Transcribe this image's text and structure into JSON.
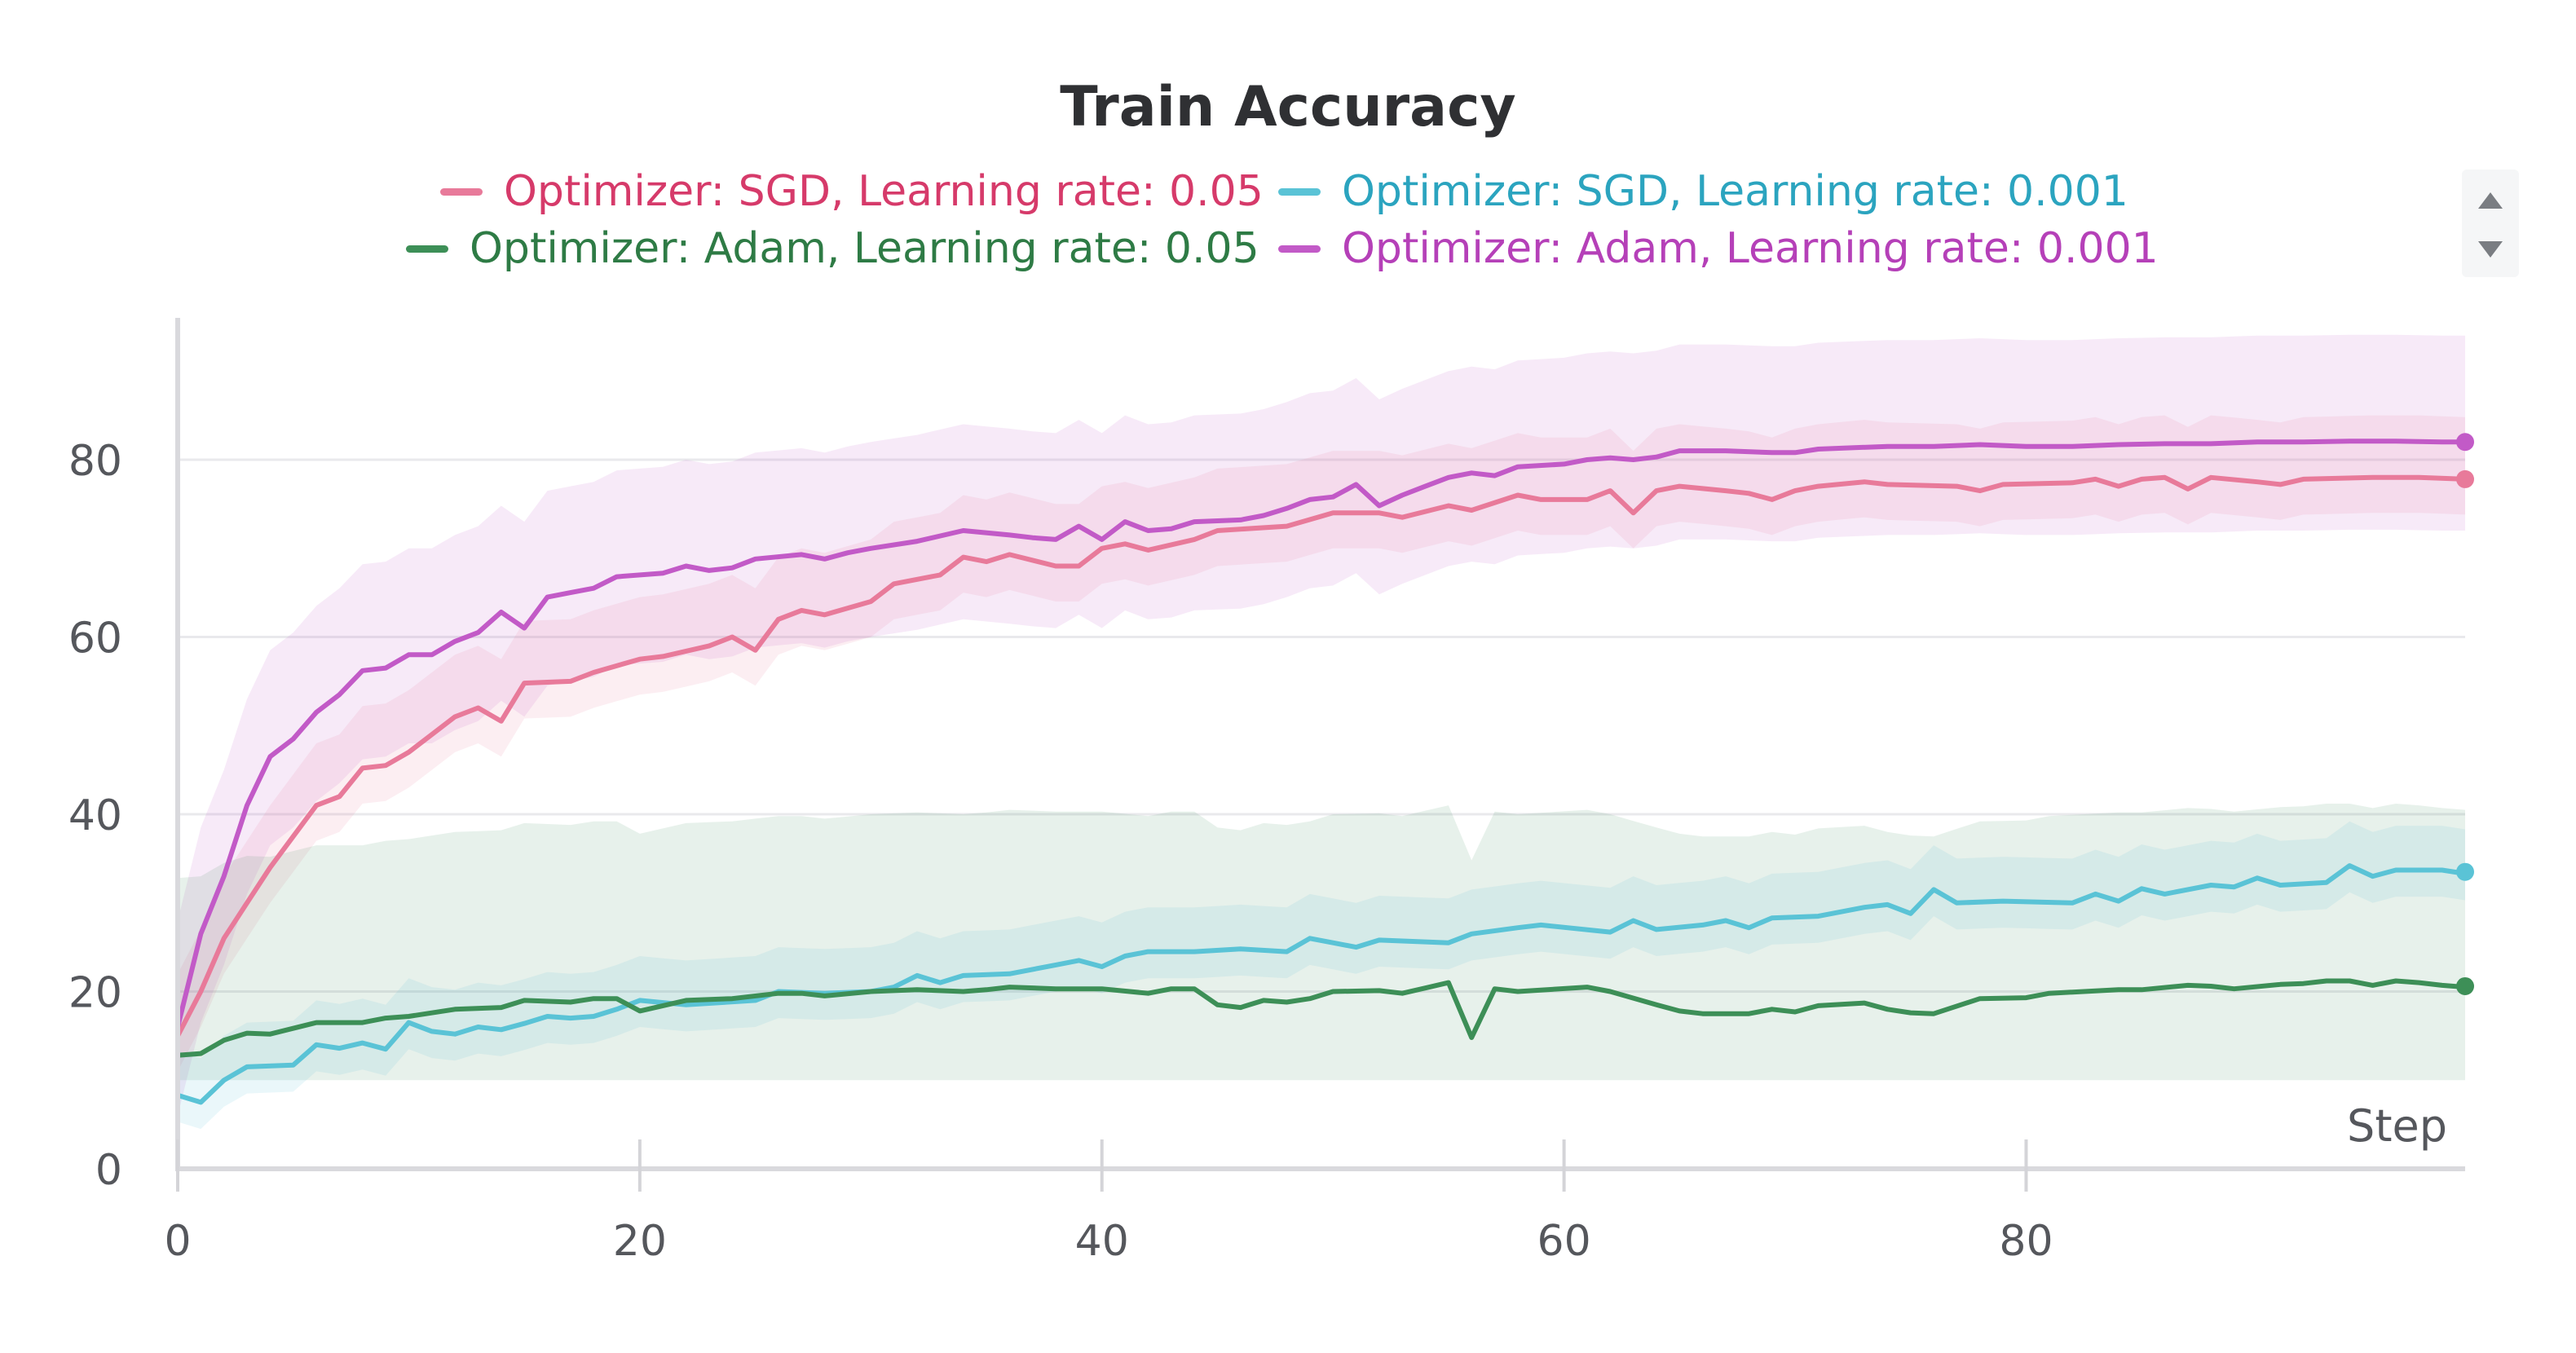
{
  "chart_data": {
    "type": "line",
    "title": "Train Accuracy",
    "xlabel": "Step",
    "ylabel": "",
    "xlim": [
      0,
      99
    ],
    "ylim": [
      0,
      96
    ],
    "xticks": [
      0,
      20,
      40,
      60,
      80
    ],
    "yticks": [
      0,
      20,
      40,
      60,
      80
    ],
    "grid": true,
    "legend_position": "top",
    "series": [
      {
        "name": "Optimizer: SGD, Learning rate: 0.05",
        "color": "#e87a9a",
        "label_color": "#d63a6a",
        "band": {
          "lower_offset": 4,
          "upper_offset": 7
        },
        "anchors": [
          [
            0,
            15
          ],
          [
            1,
            20
          ],
          [
            2,
            26
          ],
          [
            3,
            30
          ],
          [
            4,
            34
          ],
          [
            5,
            37.5
          ],
          [
            6,
            41
          ],
          [
            7,
            42
          ],
          [
            8,
            45.2
          ],
          [
            9,
            45.5
          ],
          [
            10,
            47
          ],
          [
            11,
            49
          ],
          [
            12,
            51
          ],
          [
            13,
            52
          ],
          [
            14,
            50.5
          ],
          [
            15,
            54.8
          ],
          [
            17,
            55
          ],
          [
            18,
            56
          ],
          [
            20,
            57.5
          ],
          [
            21,
            57.8
          ],
          [
            23,
            59
          ],
          [
            24,
            60
          ],
          [
            25,
            58.5
          ],
          [
            26,
            62
          ],
          [
            27,
            63
          ],
          [
            28,
            62.5
          ],
          [
            30,
            64
          ],
          [
            31,
            66
          ],
          [
            33,
            67
          ],
          [
            34,
            69
          ],
          [
            35,
            68.5
          ],
          [
            36,
            69.3
          ],
          [
            38,
            68
          ],
          [
            39,
            68
          ],
          [
            40,
            70
          ],
          [
            41,
            70.5
          ],
          [
            42,
            69.8
          ],
          [
            44,
            71
          ],
          [
            45,
            72
          ],
          [
            48,
            72.5
          ],
          [
            50,
            74
          ],
          [
            52,
            74
          ],
          [
            53,
            73.5
          ],
          [
            55,
            74.8
          ],
          [
            56,
            74.3
          ],
          [
            58,
            76
          ],
          [
            59,
            75.5
          ],
          [
            61,
            75.5
          ],
          [
            62,
            76.5
          ],
          [
            63,
            74
          ],
          [
            64,
            76.5
          ],
          [
            65,
            77
          ],
          [
            67,
            76.5
          ],
          [
            68,
            76.2
          ],
          [
            69,
            75.5
          ],
          [
            70,
            76.5
          ],
          [
            71,
            77
          ],
          [
            73,
            77.5
          ],
          [
            74,
            77.2
          ],
          [
            77,
            77
          ],
          [
            78,
            76.5
          ],
          [
            79,
            77.2
          ],
          [
            82,
            77.4
          ],
          [
            83,
            77.8
          ],
          [
            84,
            77
          ],
          [
            85,
            77.8
          ],
          [
            86,
            78
          ],
          [
            87,
            76.7
          ],
          [
            88,
            78
          ],
          [
            90,
            77.5
          ],
          [
            91,
            77.2
          ],
          [
            92,
            77.8
          ],
          [
            95,
            78
          ],
          [
            97,
            78
          ],
          [
            99,
            77.8
          ]
        ],
        "end_value": 77.8
      },
      {
        "name": "Optimizer: SGD, Learning rate: 0.001",
        "color": "#5ac3d6",
        "label_color": "#2ba4bf",
        "band": {
          "lower_offset": 3,
          "upper_offset": 5
        },
        "anchors": [
          [
            0,
            8.3
          ],
          [
            1,
            7.5
          ],
          [
            2,
            10
          ],
          [
            3,
            11.5
          ],
          [
            5,
            11.7
          ],
          [
            6,
            14
          ],
          [
            7,
            13.6
          ],
          [
            8,
            14.2
          ],
          [
            9,
            13.5
          ],
          [
            10,
            16.5
          ],
          [
            11,
            15.5
          ],
          [
            12,
            15.2
          ],
          [
            13,
            16
          ],
          [
            14,
            15.7
          ],
          [
            15,
            16.4
          ],
          [
            16,
            17.2
          ],
          [
            17,
            17
          ],
          [
            18,
            17.2
          ],
          [
            19,
            18
          ],
          [
            20,
            19
          ],
          [
            22,
            18.5
          ],
          [
            25,
            19
          ],
          [
            26,
            20
          ],
          [
            28,
            19.8
          ],
          [
            30,
            20
          ],
          [
            31,
            20.5
          ],
          [
            32,
            21.8
          ],
          [
            33,
            21
          ],
          [
            34,
            21.8
          ],
          [
            36,
            22
          ],
          [
            38,
            23
          ],
          [
            39,
            23.5
          ],
          [
            40,
            22.8
          ],
          [
            41,
            24
          ],
          [
            42,
            24.5
          ],
          [
            44,
            24.5
          ],
          [
            46,
            24.8
          ],
          [
            48,
            24.5
          ],
          [
            49,
            26
          ],
          [
            50,
            25.5
          ],
          [
            51,
            25
          ],
          [
            52,
            25.8
          ],
          [
            55,
            25.5
          ],
          [
            56,
            26.5
          ],
          [
            58,
            27.2
          ],
          [
            59,
            27.5
          ],
          [
            62,
            26.7
          ],
          [
            63,
            28
          ],
          [
            64,
            27
          ],
          [
            66,
            27.5
          ],
          [
            67,
            28
          ],
          [
            68,
            27.2
          ],
          [
            69,
            28.3
          ],
          [
            71,
            28.5
          ],
          [
            73,
            29.5
          ],
          [
            74,
            29.8
          ],
          [
            75,
            28.8
          ],
          [
            76,
            31.5
          ],
          [
            77,
            30
          ],
          [
            79,
            30.2
          ],
          [
            82,
            30
          ],
          [
            83,
            31
          ],
          [
            84,
            30.2
          ],
          [
            85,
            31.6
          ],
          [
            86,
            31
          ],
          [
            88,
            32
          ],
          [
            89,
            31.8
          ],
          [
            90,
            32.8
          ],
          [
            91,
            32
          ],
          [
            93,
            32.3
          ],
          [
            94,
            34.2
          ],
          [
            95,
            33
          ],
          [
            96,
            33.7
          ],
          [
            98,
            33.7
          ],
          [
            99,
            33.3
          ]
        ],
        "end_value": 33.5
      },
      {
        "name": "Optimizer: Adam, Learning rate: 0.05",
        "color": "#3d8f57",
        "label_color": "#2e7b45",
        "band": {
          "lower_fixed": 10,
          "upper_offset": 20
        },
        "anchors": [
          [
            0,
            12.8
          ],
          [
            1,
            13
          ],
          [
            2,
            14.5
          ],
          [
            3,
            15.3
          ],
          [
            4,
            15.2
          ],
          [
            6,
            16.5
          ],
          [
            8,
            16.5
          ],
          [
            9,
            17
          ],
          [
            10,
            17.2
          ],
          [
            12,
            18
          ],
          [
            14,
            18.2
          ],
          [
            15,
            19
          ],
          [
            17,
            18.8
          ],
          [
            18,
            19.2
          ],
          [
            19,
            19.2
          ],
          [
            20,
            17.8
          ],
          [
            22,
            19
          ],
          [
            24,
            19.2
          ],
          [
            26,
            19.8
          ],
          [
            27,
            19.8
          ],
          [
            28,
            19.5
          ],
          [
            30,
            20
          ],
          [
            32,
            20.2
          ],
          [
            34,
            20
          ],
          [
            35,
            20.2
          ],
          [
            36,
            20.5
          ],
          [
            38,
            20.3
          ],
          [
            40,
            20.3
          ],
          [
            42,
            19.8
          ],
          [
            43,
            20.3
          ],
          [
            44,
            20.3
          ],
          [
            45,
            18.5
          ],
          [
            46,
            18.2
          ],
          [
            47,
            19
          ],
          [
            48,
            18.8
          ],
          [
            49,
            19.2
          ],
          [
            50,
            20
          ],
          [
            52,
            20.1
          ],
          [
            53,
            19.8
          ],
          [
            54,
            20.4
          ],
          [
            55,
            21
          ],
          [
            56,
            14.8
          ],
          [
            57,
            20.3
          ],
          [
            58,
            20
          ],
          [
            61,
            20.5
          ],
          [
            62,
            20
          ],
          [
            64,
            18.5
          ],
          [
            65,
            17.8
          ],
          [
            66,
            17.5
          ],
          [
            68,
            17.5
          ],
          [
            69,
            18
          ],
          [
            70,
            17.7
          ],
          [
            71,
            18.4
          ],
          [
            73,
            18.7
          ],
          [
            74,
            18
          ],
          [
            75,
            17.6
          ],
          [
            76,
            17.5
          ],
          [
            78,
            19.2
          ],
          [
            80,
            19.3
          ],
          [
            81,
            19.8
          ],
          [
            84,
            20.2
          ],
          [
            85,
            20.2
          ],
          [
            87,
            20.7
          ],
          [
            88,
            20.6
          ],
          [
            89,
            20.3
          ],
          [
            91,
            20.8
          ],
          [
            92,
            20.9
          ],
          [
            93,
            21.2
          ],
          [
            94,
            21.2
          ],
          [
            95,
            20.7
          ],
          [
            96,
            21.2
          ],
          [
            97,
            21
          ],
          [
            98,
            20.7
          ],
          [
            99,
            20.5
          ]
        ],
        "end_value": 20.6
      },
      {
        "name": "Optimizer: Adam, Learning rate: 0.001",
        "color": "#c25ac7",
        "label_color": "#b540b8",
        "band": {
          "lower_offset": 10,
          "upper_offset": 12
        },
        "anchors": [
          [
            0,
            16
          ],
          [
            1,
            26.5
          ],
          [
            2,
            33
          ],
          [
            3,
            41
          ],
          [
            4,
            46.5
          ],
          [
            5,
            48.5
          ],
          [
            6,
            51.5
          ],
          [
            7,
            53.5
          ],
          [
            8,
            56.2
          ],
          [
            9,
            56.5
          ],
          [
            10,
            58
          ],
          [
            11,
            58
          ],
          [
            12,
            59.5
          ],
          [
            13,
            60.5
          ],
          [
            14,
            62.8
          ],
          [
            15,
            61
          ],
          [
            16,
            64.5
          ],
          [
            17,
            65
          ],
          [
            18,
            65.5
          ],
          [
            19,
            66.8
          ],
          [
            21,
            67.2
          ],
          [
            22,
            68
          ],
          [
            23,
            67.5
          ],
          [
            24,
            67.8
          ],
          [
            25,
            68.8
          ],
          [
            27,
            69.3
          ],
          [
            28,
            68.8
          ],
          [
            29,
            69.5
          ],
          [
            30,
            70
          ],
          [
            32,
            70.8
          ],
          [
            34,
            72
          ],
          [
            36,
            71.5
          ],
          [
            37,
            71.2
          ],
          [
            38,
            71
          ],
          [
            39,
            72.5
          ],
          [
            40,
            71
          ],
          [
            41,
            73
          ],
          [
            42,
            72
          ],
          [
            43,
            72.2
          ],
          [
            44,
            73
          ],
          [
            46,
            73.2
          ],
          [
            47,
            73.7
          ],
          [
            48,
            74.5
          ],
          [
            49,
            75.5
          ],
          [
            50,
            75.8
          ],
          [
            51,
            77.2
          ],
          [
            52,
            74.8
          ],
          [
            53,
            76
          ],
          [
            54,
            77
          ],
          [
            55,
            78
          ],
          [
            56,
            78.5
          ],
          [
            57,
            78.2
          ],
          [
            58,
            79.2
          ],
          [
            60,
            79.5
          ],
          [
            61,
            80
          ],
          [
            62,
            80.2
          ],
          [
            63,
            80
          ],
          [
            64,
            80.3
          ],
          [
            65,
            81
          ],
          [
            67,
            81
          ],
          [
            69,
            80.8
          ],
          [
            70,
            80.8
          ],
          [
            71,
            81.2
          ],
          [
            72,
            81.3
          ],
          [
            74,
            81.5
          ],
          [
            76,
            81.5
          ],
          [
            78,
            81.7
          ],
          [
            80,
            81.5
          ],
          [
            82,
            81.5
          ],
          [
            84,
            81.7
          ],
          [
            86,
            81.8
          ],
          [
            88,
            81.8
          ],
          [
            90,
            82
          ],
          [
            92,
            82
          ],
          [
            94,
            82.1
          ],
          [
            96,
            82.1
          ],
          [
            98,
            82
          ],
          [
            99,
            82
          ]
        ],
        "end_value": 82
      }
    ]
  }
}
